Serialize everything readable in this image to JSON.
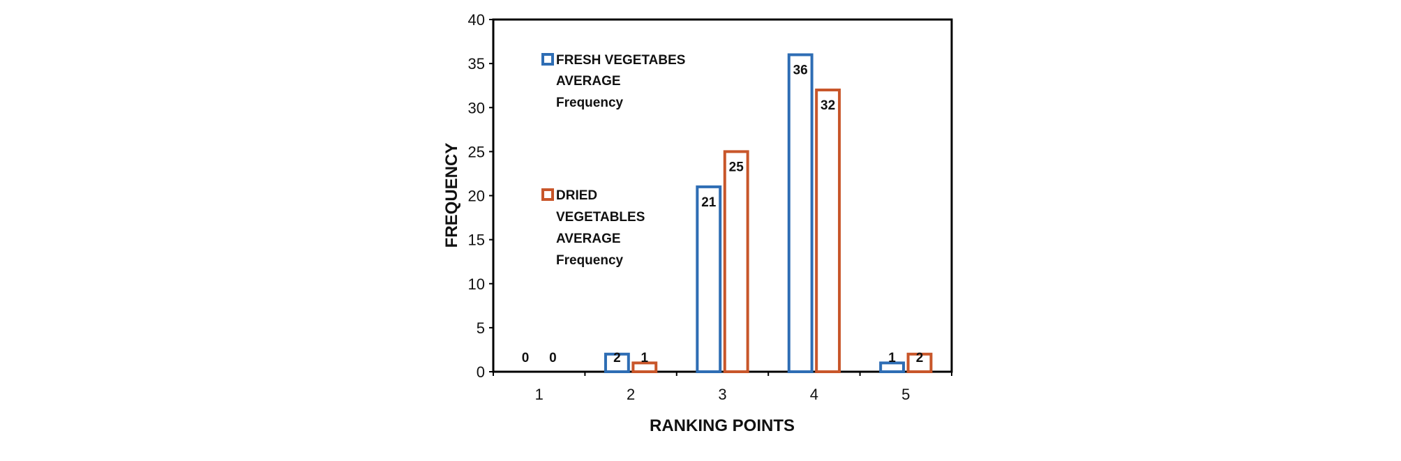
{
  "chart_data": {
    "type": "bar",
    "title": "",
    "xlabel": "RANKING POINTS",
    "ylabel": "FREQUENCY",
    "categories": [
      "1",
      "2",
      "3",
      "4",
      "5"
    ],
    "ylim": [
      0,
      40
    ],
    "yticks": [
      "0",
      "5",
      "10",
      "15",
      "20",
      "25",
      "30",
      "35",
      "40"
    ],
    "grid": false,
    "legend_position": "left-inside",
    "series": [
      {
        "name": "FRESH VEGETABES AVERAGE Frequency",
        "legend_lines": [
          "FRESH VEGETABES",
          "AVERAGE",
          "Frequency"
        ],
        "color": "#2e6db4",
        "values": [
          0,
          2,
          21,
          36,
          1
        ],
        "labels": [
          "0",
          "2",
          "21",
          "36",
          "1"
        ]
      },
      {
        "name": "DRIED VEGETABLES AVERAGE Frequency",
        "legend_lines": [
          "DRIED",
          "VEGETABLES",
          "AVERAGE",
          "Frequency"
        ],
        "color": "#c8562a",
        "values": [
          0,
          1,
          25,
          32,
          2
        ],
        "labels": [
          "0",
          "1",
          "25",
          "32",
          "2"
        ]
      }
    ]
  }
}
